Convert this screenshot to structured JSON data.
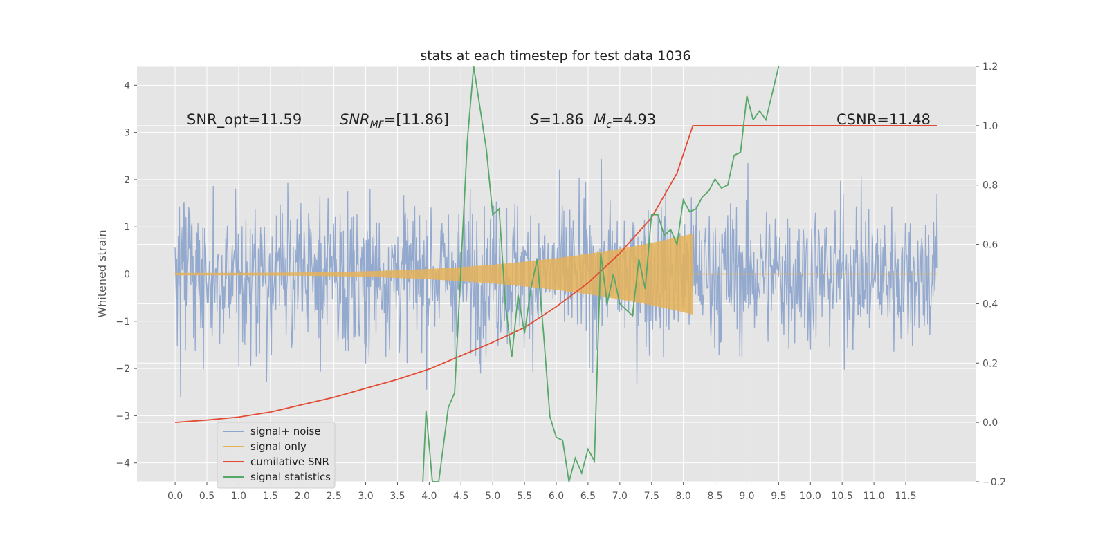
{
  "chart_data": {
    "type": "line",
    "title": "stats at each timestep for test data 1036",
    "ylabel": "Whitened strain",
    "xlabel": "",
    "xlim": [
      -0.6,
      12.6
    ],
    "ylim": [
      -4.4,
      4.4
    ],
    "y2lim": [
      -0.2,
      1.2
    ],
    "x_ticks": [
      "0.0",
      "0.5",
      "1.0",
      "1.5",
      "2.0",
      "2.5",
      "3.0",
      "3.5",
      "4.0",
      "4.5",
      "5.0",
      "5.5",
      "6.0",
      "6.5",
      "7.0",
      "7.5",
      "8.0",
      "8.5",
      "9.0",
      "9.5",
      "10.0",
      "10.5",
      "11.0",
      "11.5"
    ],
    "y_ticks": [
      "4",
      "3",
      "2",
      "1",
      "0",
      "−1",
      "−2",
      "−3",
      "−4"
    ],
    "y2_ticks": [
      "1.2",
      "1.0",
      "0.8",
      "0.6",
      "0.4",
      "0.2",
      "0.0",
      "−0.2"
    ],
    "grid": true,
    "legend_position": "lower-left",
    "annotations": {
      "snr_opt": "SNR_opt=11.59",
      "snr_mf_sym": "SNR",
      "snr_mf_sub": "MF",
      "snr_mf_val": "=[11.86]",
      "s_sym": "S",
      "s_val": "=1.86",
      "mc_sym": "M",
      "mc_sub": "c",
      "mc_val": "=4.93",
      "csnr": "CSNR=11.48"
    },
    "colors": {
      "signal_noise": "#8ea5cc",
      "signal_only": "#e6b35a",
      "cumulative_snr": "#e24a33",
      "signal_statistics": "#55a868",
      "panel_bg": "#e5e5e5",
      "grid": "#ffffff"
    },
    "series": [
      {
        "name": "signal+ noise",
        "description_kind": "noise band",
        "x_range": [
          0.0,
          12.0
        ],
        "envelope": 2.4
      },
      {
        "name": "signal only",
        "description_kind": "chirp envelope",
        "x_range": [
          0.0,
          8.15
        ],
        "amplitude_start": 0.02,
        "amplitude_end": 0.85
      },
      {
        "name": "cumilative SNR",
        "axis": "right",
        "x": [
          0.0,
          0.5,
          1.0,
          1.5,
          2.0,
          2.5,
          3.0,
          3.5,
          4.0,
          4.5,
          5.0,
          5.5,
          6.0,
          6.5,
          7.0,
          7.5,
          7.9,
          8.15,
          8.5,
          9.0,
          10.0,
          11.0,
          12.0
        ],
        "values": [
          0.0,
          0.008,
          0.018,
          0.035,
          0.06,
          0.085,
          0.115,
          0.145,
          0.18,
          0.225,
          0.27,
          0.32,
          0.39,
          0.47,
          0.57,
          0.69,
          0.84,
          1.0,
          1.0,
          1.0,
          1.0,
          1.0,
          1.0
        ]
      },
      {
        "name": "signal statistics",
        "axis": "right",
        "x": [
          3.9,
          3.95,
          4.05,
          4.15,
          4.3,
          4.4,
          4.6,
          4.7,
          4.9,
          5.0,
          5.1,
          5.2,
          5.3,
          5.4,
          5.5,
          5.6,
          5.7,
          5.8,
          5.9,
          6.0,
          6.1,
          6.2,
          6.3,
          6.4,
          6.5,
          6.6,
          6.7,
          6.8,
          6.9,
          7.0,
          7.1,
          7.2,
          7.3,
          7.4,
          7.5,
          7.6,
          7.7,
          7.8,
          7.9,
          8.0,
          8.1,
          8.2,
          8.3,
          8.4,
          8.5,
          8.6,
          8.7,
          8.8,
          8.9,
          9.0,
          9.1,
          9.2,
          9.3,
          9.5
        ],
        "values": [
          -0.22,
          0.04,
          -0.25,
          -0.35,
          0.05,
          0.1,
          0.95,
          1.25,
          0.92,
          0.7,
          0.72,
          0.4,
          0.22,
          0.43,
          0.3,
          0.45,
          0.55,
          0.3,
          0.02,
          -0.05,
          -0.06,
          -0.2,
          -0.12,
          -0.17,
          -0.09,
          -0.13,
          0.57,
          0.4,
          0.5,
          0.4,
          0.38,
          0.36,
          0.55,
          0.45,
          0.7,
          0.7,
          0.63,
          0.65,
          0.6,
          0.75,
          0.71,
          0.72,
          0.76,
          0.78,
          0.82,
          0.79,
          0.8,
          0.9,
          0.91,
          1.1,
          1.02,
          1.05,
          1.02,
          1.22
        ]
      }
    ]
  }
}
